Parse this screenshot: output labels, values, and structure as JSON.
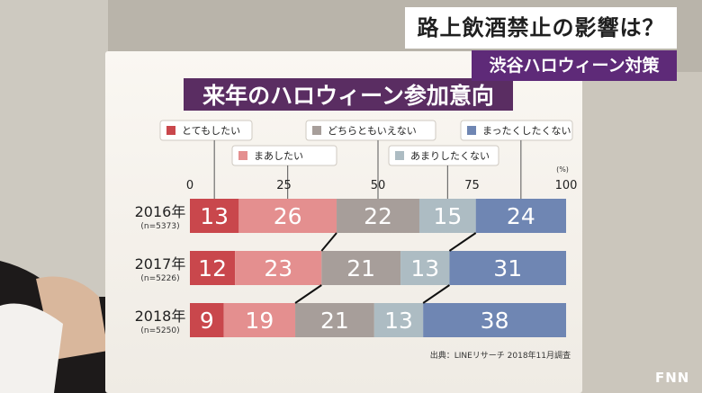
{
  "broadcast": {
    "headline": "路上飲酒禁止の影響は？",
    "subheadline": "渋谷ハロウィーン対策",
    "logo": "FNN"
  },
  "colors": {
    "とてもしたい": "#c9474c",
    "まあしたい": "#e48f8f",
    "どちらともいえない": "#a79e9a",
    "あまりしたくない": "#adbcc3",
    "まったくしたくない": "#6f86b3",
    "title_bg": "#5a2d62",
    "ticker_sub_bg": "#5e2a78"
  },
  "chart_data": {
    "type": "bar",
    "stacked": "horizontal-100",
    "title": "来年のハロウィーン参加意向",
    "categories": [
      "2016年",
      "2017年",
      "2018年"
    ],
    "sample_sizes": [
      "(n=5373)",
      "(n=5226)",
      "(n=5250)"
    ],
    "series": [
      {
        "name": "とてもしたい",
        "values": [
          13,
          12,
          9
        ]
      },
      {
        "name": "まあしたい",
        "values": [
          26,
          23,
          19
        ]
      },
      {
        "name": "どちらともいえない",
        "values": [
          22,
          21,
          21
        ]
      },
      {
        "name": "あまりしたくない",
        "values": [
          15,
          13,
          13
        ]
      },
      {
        "name": "まったくしたくない",
        "values": [
          24,
          31,
          38
        ]
      }
    ],
    "xlim": [
      0,
      100
    ],
    "xticks": [
      0,
      25,
      50,
      75,
      100
    ],
    "unit": "(%)",
    "source": "出典：LINEリサーチ 2018年11月調査"
  }
}
